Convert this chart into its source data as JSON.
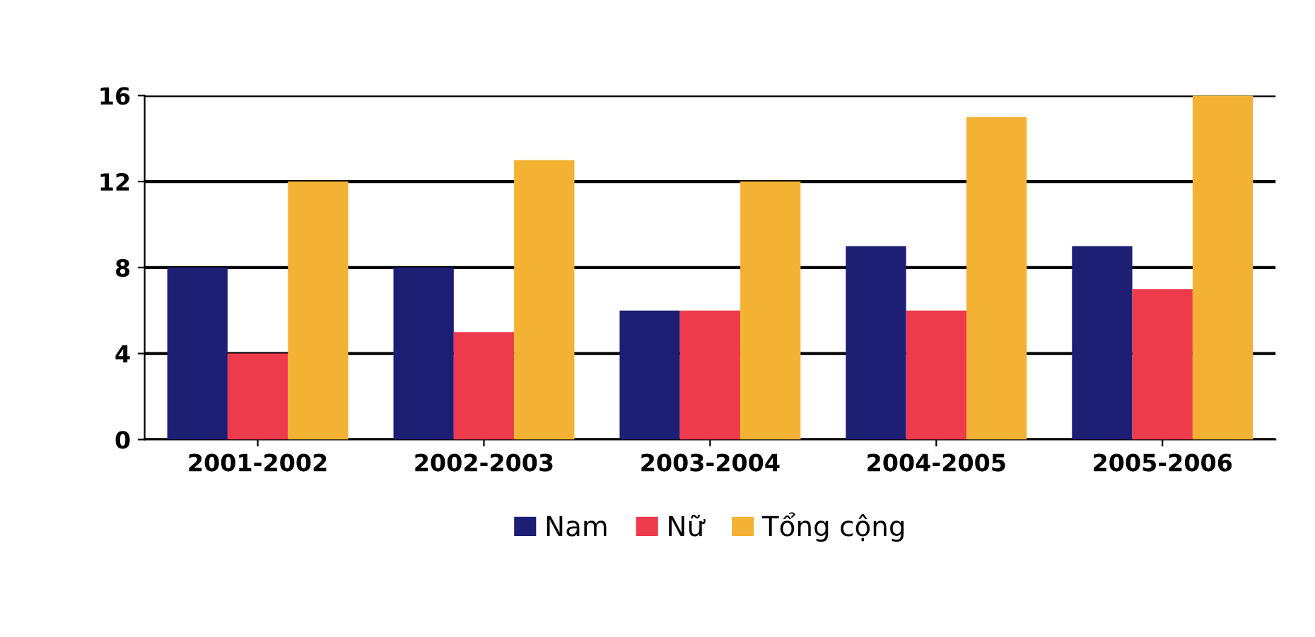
{
  "chart_data": {
    "type": "bar",
    "categories": [
      "2001-2002",
      "2002-2003",
      "2003-2004",
      "2004-2005",
      "2005-2006"
    ],
    "series": [
      {
        "name": "Nam",
        "color": "#1c1f73",
        "values": [
          8,
          8,
          6,
          9,
          9
        ]
      },
      {
        "name": "Nữ",
        "color": "#ee3b4b",
        "values": [
          4,
          5,
          6,
          6,
          7
        ]
      },
      {
        "name": "Tổng cộng",
        "color": "#f4b234",
        "values": [
          12,
          13,
          12,
          15,
          16
        ]
      }
    ],
    "ylim": [
      0,
      16
    ],
    "yticks": [
      0,
      4,
      8,
      12,
      16
    ],
    "grid": "y",
    "legend": "bottom"
  }
}
